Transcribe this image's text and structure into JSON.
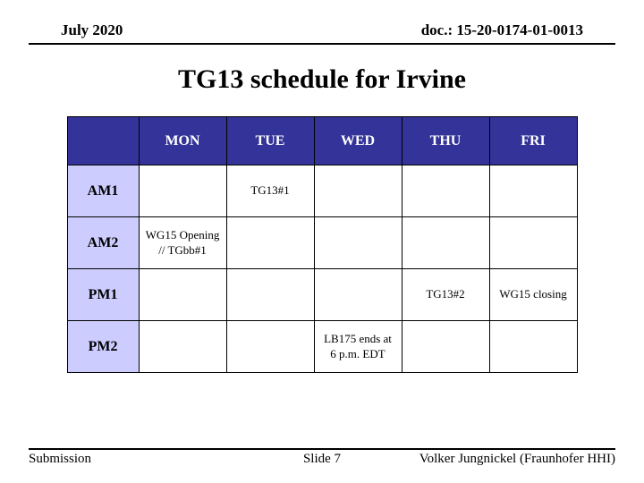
{
  "header": {
    "left": "July 2020",
    "right": "doc.: 15-20-0174-01-0013"
  },
  "title": "TG13 schedule for Irvine",
  "table": {
    "header_bg": "#333399",
    "header_fg": "#ffffff",
    "rowlabel_bg": "#ccccff",
    "cell_bg": "#ffffff",
    "border_color": "#000000",
    "days": [
      "MON",
      "TUE",
      "WED",
      "THU",
      "FRI"
    ],
    "rows": [
      "AM1",
      "AM2",
      "PM1",
      "PM2"
    ],
    "cells": {
      "AM1": {
        "MON": "",
        "TUE": "TG13#1",
        "WED": "",
        "THU": "",
        "FRI": ""
      },
      "AM2": {
        "MON": "WG15 Opening // TGbb#1",
        "TUE": "",
        "WED": "",
        "THU": "",
        "FRI": ""
      },
      "PM1": {
        "MON": "",
        "TUE": "",
        "WED": "",
        "THU": "TG13#2",
        "FRI": "WG15 closing"
      },
      "PM2": {
        "MON": "",
        "TUE": "",
        "WED": "LB175 ends at 6 p.m. EDT",
        "THU": "",
        "FRI": ""
      }
    }
  },
  "footer": {
    "left": "Submission",
    "center": "Slide 7",
    "right": "Volker Jungnickel (Fraunhofer HHI)"
  }
}
